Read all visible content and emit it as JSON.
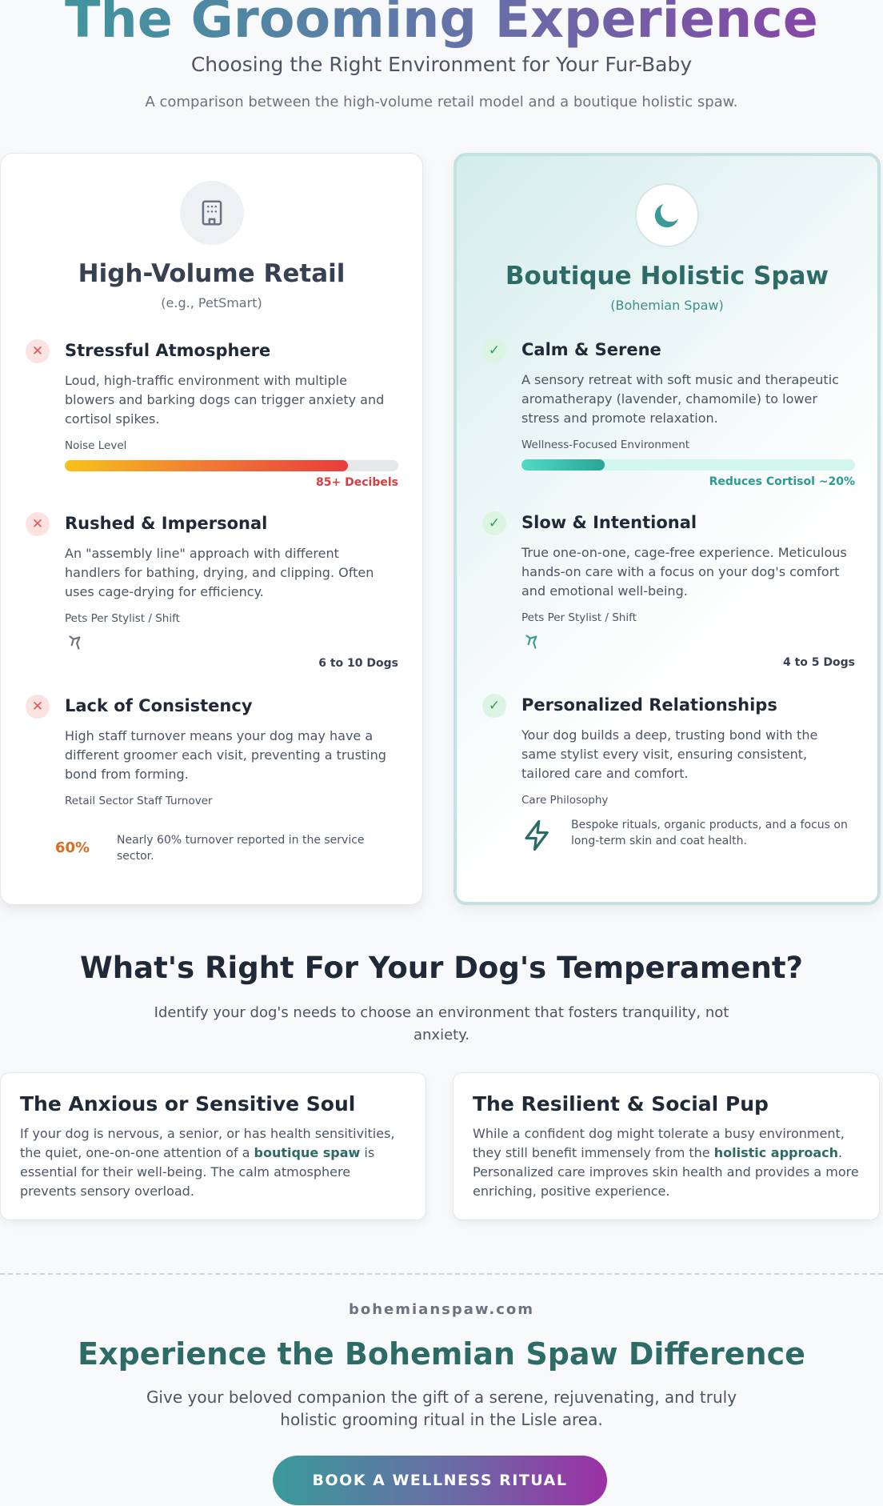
{
  "header": {
    "title": "The Grooming Experience",
    "subtitle": "Choosing the Right Environment for Your Fur-Baby",
    "intro": "A comparison between the high-volume retail model and a boutique holistic spaw."
  },
  "retail": {
    "title": "High-Volume Retail",
    "sub": "(e.g., PetSmart)",
    "icon": "building-icon",
    "features": [
      {
        "title": "Stressful Atmosphere",
        "desc": "Loud, high-traffic environment with multiple blowers and barking dogs can trigger anxiety and cortisol spikes.",
        "label": "Noise Level",
        "note": "85+ Decibels",
        "level": 0.85
      },
      {
        "title": "Rushed & Impersonal",
        "desc": "An \"assembly line\" approach with different handlers for bathing, drying, and clipping. Often uses cage-drying for efficiency.",
        "label": "Pets Per Stylist / Shift",
        "note": "6 to 10 Dogs",
        "icon": "pet-icon"
      },
      {
        "title": "Lack of Consistency",
        "desc": "High staff turnover means your dog may have a different groomer each visit, preventing a trusting bond from forming.",
        "label": "Retail Sector Staff Turnover",
        "stat": "60%",
        "stat_text": "Nearly 60% turnover reported in the service sector."
      }
    ]
  },
  "spaw": {
    "title": "Boutique Holistic Spaw",
    "sub": "(Bohemian Spaw)",
    "icon": "moon-icon",
    "features": [
      {
        "title": "Calm & Serene",
        "desc": "A sensory retreat with soft music and therapeutic aromatherapy (lavender, chamomile) to lower stress and promote relaxation.",
        "label": "Wellness-Focused Environment",
        "note": "Reduces Cortisol ~20%",
        "level": 0.25
      },
      {
        "title": "Slow & Intentional",
        "desc": "True one-on-one, cage-free experience. Meticulous hands-on care with a focus on your dog's comfort and emotional well-being.",
        "label": "Pets Per Stylist / Shift",
        "note": "4 to 5 Dogs",
        "icon": "pet-icon"
      },
      {
        "title": "Personalized Relationships",
        "desc": "Your dog builds a deep, trusting bond with the same stylist every visit, ensuring consistent, tailored care and comfort.",
        "label": "Care Philosophy",
        "stat_text": "Bespoke rituals, organic products, and a focus on long-term skin and coat health.",
        "icon": "spa-icon"
      }
    ]
  },
  "temperament": {
    "title": "What's Right For Your Dog's Temperament?",
    "sub": "Identify your dog's needs to choose an environment that fosters tranquility, not anxiety.",
    "cards": [
      {
        "title": "The Anxious or Sensitive Soul",
        "pre": "If your dog is nervous, a senior, or has health sensitivities, the quiet, one-on-one attention of a ",
        "strong": "boutique spaw",
        "post": " is essential for their well-being. The calm atmosphere prevents sensory overload."
      },
      {
        "title": "The Resilient & Social Pup",
        "pre": "While a confident dog might tolerate a busy environment, they still benefit immensely from the ",
        "strong": "holistic approach",
        "post": ". Personalized care improves skin health and provides a more enriching, positive experience."
      }
    ]
  },
  "footer": {
    "site": "bohemianspaw.com",
    "cta_title": "Experience the Bohemian Spaw Difference",
    "cta_sub": "Give your beloved companion the gift of a serene, rejuvenating, and truly holistic grooming ritual in the Lisle area.",
    "button": "BOOK A WELLNESS RITUAL"
  },
  "colors": {
    "teal": "#2d6b66",
    "red_note": "#d53f3f",
    "teal_note": "#2b9c8f"
  }
}
